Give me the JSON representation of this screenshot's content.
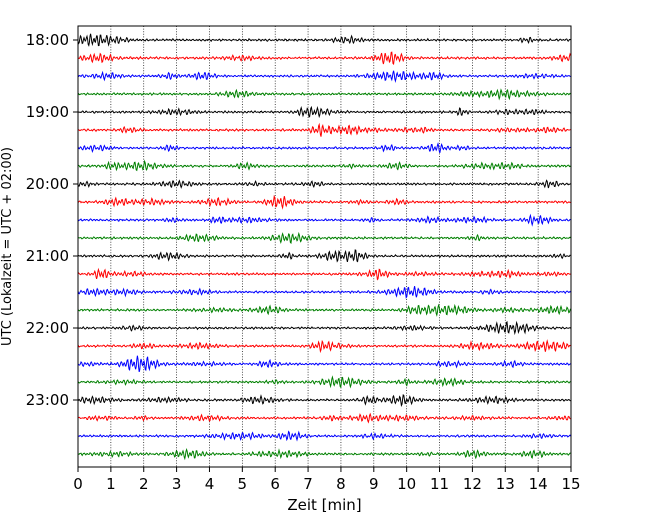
{
  "chart_data": {
    "type": "line",
    "xlabel": "Zeit  [min]",
    "ylabel": "UTC (Lokalzeit = UTC + 02:00)",
    "xlim": [
      0,
      15
    ],
    "x_ticks": [
      "0",
      "1",
      "2",
      "3",
      "4",
      "5",
      "6",
      "7",
      "8",
      "9",
      "10",
      "11",
      "12",
      "13",
      "14",
      "15"
    ],
    "y_ticks": [
      "18:00",
      "19:00",
      "20:00",
      "21:00",
      "22:00",
      "23:00"
    ],
    "grid": "vertical dotted lines at every minute",
    "trace_interval_minutes": 15,
    "trace_count": 24,
    "trace_start_hours": [
      "18:00",
      "18:15",
      "18:30",
      "18:45",
      "19:00",
      "19:15",
      "19:30",
      "19:45",
      "20:00",
      "20:15",
      "20:30",
      "20:45",
      "21:00",
      "21:15",
      "21:30",
      "21:45",
      "22:00",
      "22:15",
      "22:30",
      "22:45",
      "23:00",
      "23:15",
      "23:30",
      "23:45"
    ],
    "trace_colors": [
      "#000000",
      "#ff0000",
      "#0000ff",
      "#008000"
    ]
  }
}
